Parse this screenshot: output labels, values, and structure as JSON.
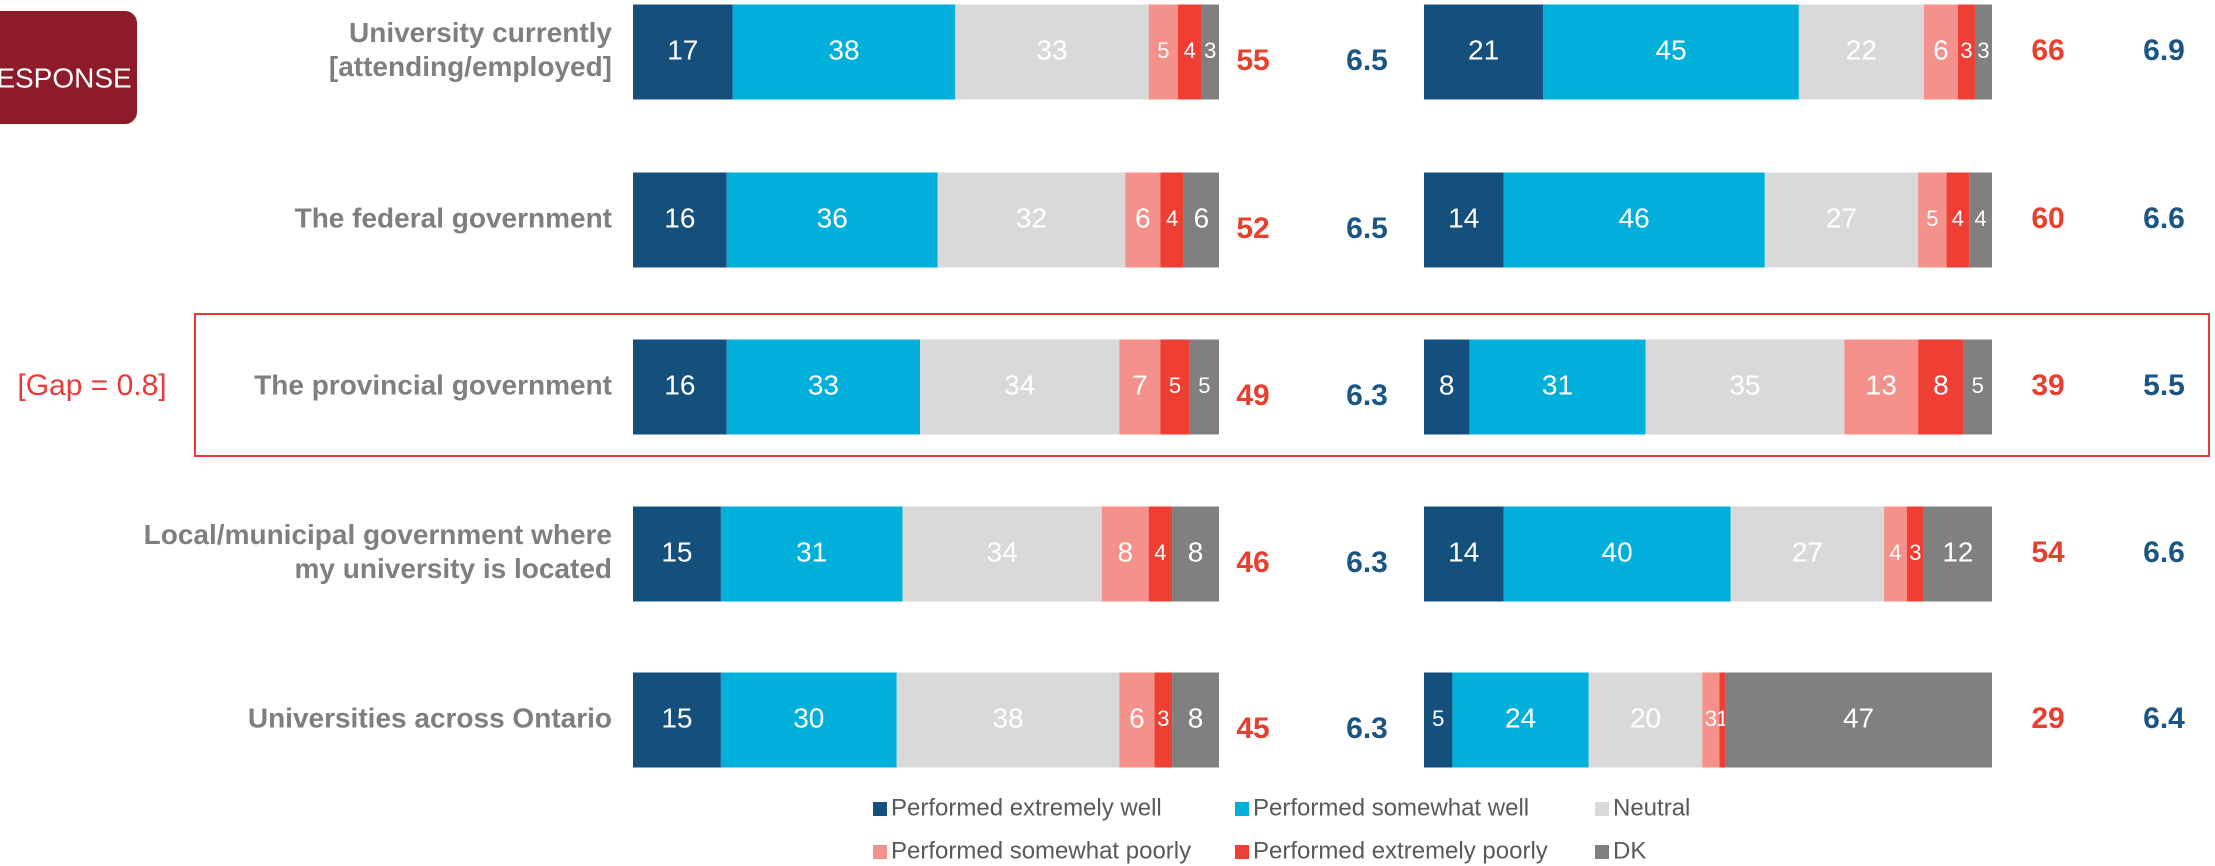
{
  "chart_data": {
    "type": "bar",
    "orientation": "horizontal",
    "logo_text": "ESPONSE",
    "annotation": "[Gap = 0.8]",
    "categories": [
      "University currently\n[attending/employed]",
      "The federal government",
      "The provincial government",
      "Local/municipal government where\nmy university is located",
      "Universities across Ontario"
    ],
    "xlim": [
      0,
      100
    ],
    "series": [
      {
        "name": "Performed extremely well",
        "color": "#15507c",
        "values": [
          17,
          16,
          16,
          15,
          15
        ],
        "values_2": [
          21,
          14,
          8,
          14,
          5
        ]
      },
      {
        "name": "Performed somewhat well",
        "color": "#00b0da",
        "values": [
          38,
          36,
          33,
          31,
          30
        ],
        "values_2": [
          45,
          46,
          31,
          40,
          24
        ]
      },
      {
        "name": "Neutral",
        "color": "#d9d9d9",
        "values": [
          33,
          32,
          34,
          34,
          38
        ],
        "values_2": [
          22,
          27,
          35,
          27,
          20
        ]
      },
      {
        "name": "Performed somewhat poorly",
        "color": "#f4918a",
        "values": [
          5,
          6,
          7,
          8,
          6
        ],
        "values_2": [
          6,
          5,
          13,
          4,
          3
        ]
      },
      {
        "name": "Performed extremely poorly",
        "color": "#ef3e33",
        "values": [
          4,
          4,
          5,
          4,
          3
        ],
        "values_2": [
          3,
          4,
          8,
          3,
          1
        ]
      },
      {
        "name": "DK",
        "color": "#808080",
        "values": [
          3,
          6,
          5,
          8,
          8
        ],
        "values_2": [
          3,
          4,
          5,
          12,
          47
        ]
      }
    ],
    "net": [
      55,
      52,
      49,
      46,
      45
    ],
    "net_2": [
      66,
      60,
      39,
      54,
      29
    ],
    "mean": [
      6.5,
      6.5,
      6.3,
      6.3,
      6.3
    ],
    "mean_2": [
      6.9,
      6.6,
      5.5,
      6.6,
      6.4
    ],
    "net_color": "#e8402f",
    "mean_color": "#1a5584",
    "highlight_index": 2
  }
}
